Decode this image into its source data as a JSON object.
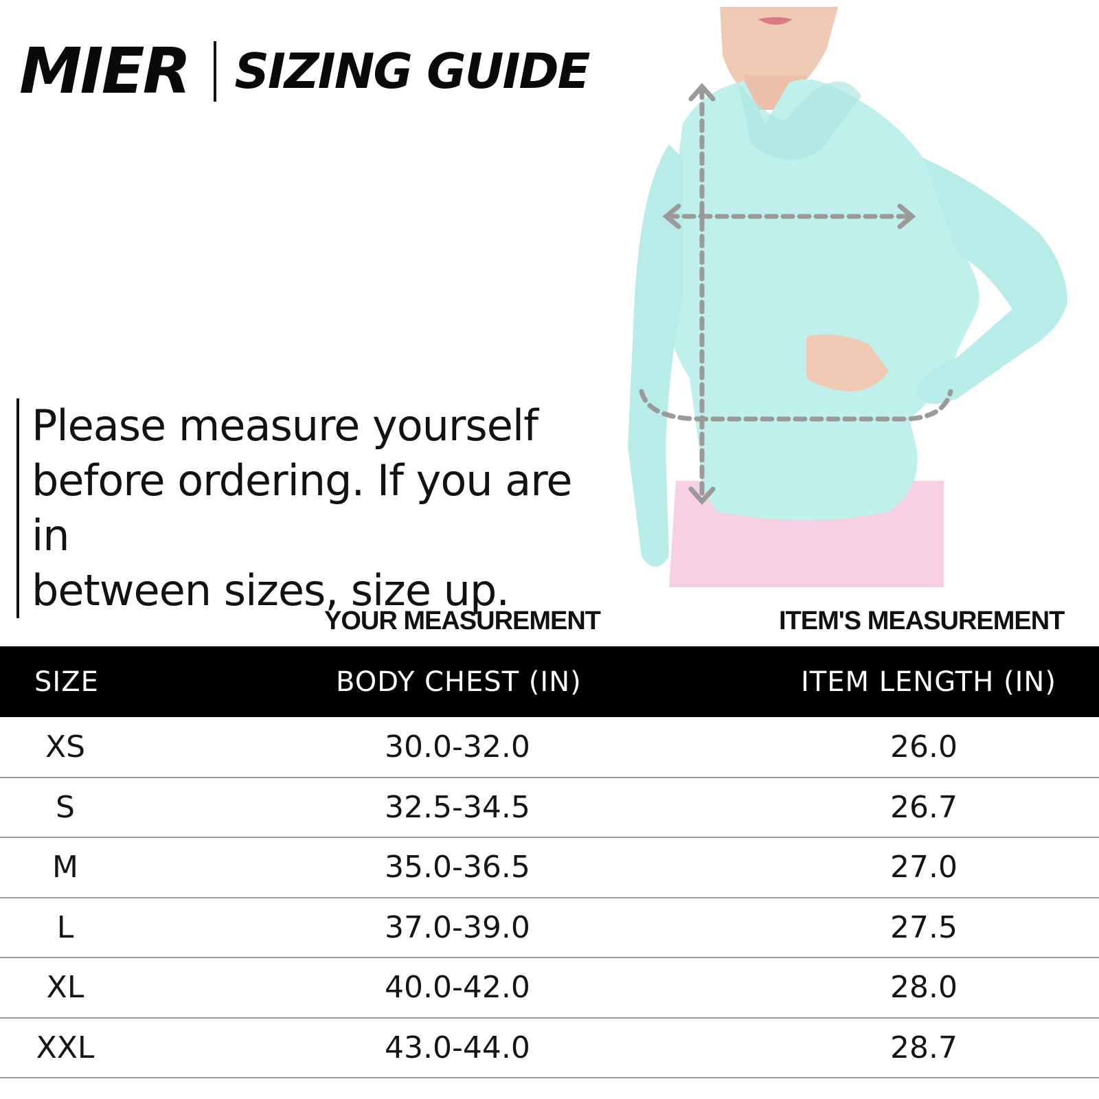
{
  "header": {
    "brand": "MIER",
    "title": "SIZING GUIDE"
  },
  "note": {
    "lines": [
      "Please measure yourself",
      "before ordering. If you are in",
      "between sizes, size up."
    ]
  },
  "table": {
    "group_headers": {
      "your_measurement": "YOUR MEASUREMENT",
      "item_measurement": "ITEM'S MEASUREMENT"
    },
    "columns": [
      "SIZE",
      "BODY CHEST (IN)",
      "ITEM LENGTH (IN)"
    ],
    "rows": [
      {
        "size": "XS",
        "chest": "30.0-32.0",
        "length": "26.0"
      },
      {
        "size": "S",
        "chest": "32.5-34.5",
        "length": "26.7"
      },
      {
        "size": "M",
        "chest": "35.0-36.5",
        "length": "27.0"
      },
      {
        "size": "L",
        "chest": "37.0-39.0",
        "length": "27.5"
      },
      {
        "size": "XL",
        "chest": "40.0-42.0",
        "length": "28.0"
      },
      {
        "size": "XXL",
        "chest": "43.0-44.0",
        "length": "28.7"
      }
    ]
  },
  "colors": {
    "shirt": "#bff0ec",
    "skirt": "#f7d0e3",
    "skin": "#f0c9b4",
    "measure_line": "#9a9a9a",
    "header_bg": "#000000"
  }
}
